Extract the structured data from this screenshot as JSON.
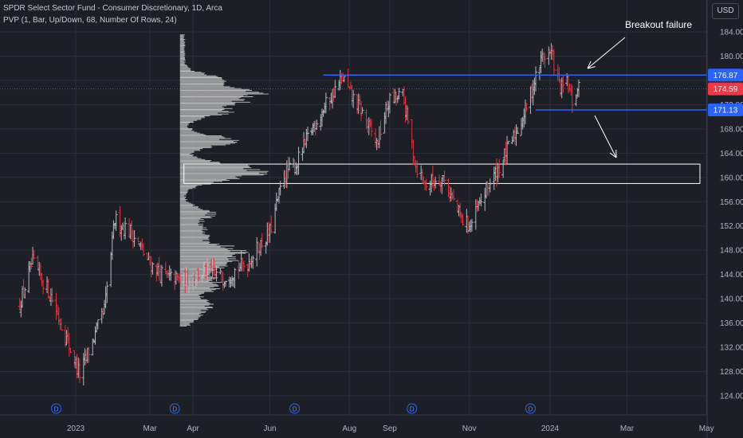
{
  "legend": {
    "title": "SPDR Select Sector Fund - Consumer Discretionary, 1D, Arca",
    "indicator": "PVP (1, Bar, Up/Down, 68, Number Of Rows, 24)"
  },
  "currency_button": "USD",
  "annotation": {
    "text": "Breakout failure"
  },
  "colors": {
    "background": "#1c1f26",
    "up_bar": "#b7b9c0",
    "down_bar": "#e0343f",
    "level_line": "#2962ff",
    "current_price": "#f23645",
    "volume_profile": "#d9d9d9"
  },
  "chart_data": {
    "type": "bar",
    "title": "SPDR Select Sector Fund - Consumer Discretionary, 1D, Arca",
    "ylim": [
      121,
      187
    ],
    "y_ticks": [
      184,
      180,
      176,
      172,
      168,
      164,
      160,
      156,
      152,
      148,
      144,
      140,
      136,
      132,
      128,
      124
    ],
    "y_tick_labels": [
      "184.00",
      "180.00",
      "",
      "172.00",
      "168.00",
      "164.00",
      "160.00",
      "156.00",
      "152.00",
      "148.00",
      "144.00",
      "140.00",
      "136.00",
      "132.00",
      "128.00",
      "124.00"
    ],
    "x_ticks": [
      "2023",
      "Mar",
      "Apr",
      "Jun",
      "Aug",
      "Sep",
      "Nov",
      "2024",
      "Mar",
      "May"
    ],
    "x_tick_dates": [
      "2023-01-03",
      "2023-03-01",
      "2023-04-03",
      "2023-06-01",
      "2023-08-01",
      "2023-09-01",
      "2023-11-01",
      "2024-01-02",
      "2024-03-01",
      "2024-05-01"
    ],
    "dividend_markers": {
      "label": "D",
      "dates": [
        "2022-12-19",
        "2023-03-20",
        "2023-06-20",
        "2023-09-18",
        "2023-12-18"
      ]
    },
    "price_labels": [
      {
        "value": 176.87,
        "text": "176.87",
        "kind": "level"
      },
      {
        "value": 174.59,
        "text": "174.59",
        "kind": "current"
      },
      {
        "value": 171.13,
        "text": "171.13",
        "kind": "level"
      }
    ],
    "levels": [
      {
        "value": 176.87,
        "from": "2023-07-12",
        "to": "2024-05-10"
      },
      {
        "value": 171.13,
        "from": "2023-12-22",
        "to": "2024-05-10"
      }
    ],
    "zone": {
      "from_date": "2023-03-27",
      "to_date": "2024-04-26",
      "low": 159.0,
      "high": 162.2
    },
    "volume_profile": {
      "date": "2023-03-24",
      "price_min": 135.5,
      "price_max": 183.6,
      "peaks": [
        [
          176,
          0.45
        ],
        [
          173.5,
          0.95
        ],
        [
          171,
          0.55
        ],
        [
          166,
          0.6
        ],
        [
          161.5,
          0.75
        ],
        [
          160,
          0.5
        ],
        [
          154,
          0.35
        ],
        [
          151,
          0.3
        ],
        [
          148,
          0.65
        ],
        [
          146,
          0.45
        ],
        [
          144,
          0.25
        ],
        [
          142,
          0.4
        ],
        [
          139,
          0.3
        ],
        [
          137,
          0.15
        ]
      ]
    },
    "price_path": [
      [
        "2022-11-20",
        138.5
      ],
      [
        "2022-12-01",
        146.0
      ],
      [
        "2022-12-15",
        140.5
      ],
      [
        "2023-01-06",
        127.5
      ],
      [
        "2023-01-25",
        138.0
      ],
      [
        "2023-02-02",
        153.0
      ],
      [
        "2023-02-15",
        151.0
      ],
      [
        "2023-02-28",
        146.0
      ],
      [
        "2023-03-13",
        143.5
      ],
      [
        "2023-03-27",
        143.0
      ],
      [
        "2023-04-12",
        144.5
      ],
      [
        "2023-04-26",
        143.5
      ],
      [
        "2023-05-15",
        146.0
      ],
      [
        "2023-06-01",
        151.0
      ],
      [
        "2023-06-12",
        160.5
      ],
      [
        "2023-06-21",
        162.0
      ],
      [
        "2023-07-03",
        168.0
      ],
      [
        "2023-07-14",
        172.0
      ],
      [
        "2023-07-27",
        176.5
      ],
      [
        "2023-08-01",
        174.0
      ],
      [
        "2023-08-10",
        171.0
      ],
      [
        "2023-08-22",
        165.5
      ],
      [
        "2023-08-31",
        172.5
      ],
      [
        "2023-09-11",
        173.5
      ],
      [
        "2023-09-21",
        162.0
      ],
      [
        "2023-09-28",
        159.0
      ],
      [
        "2023-10-12",
        160.0
      ],
      [
        "2023-10-26",
        153.0
      ],
      [
        "2023-11-02",
        152.0
      ],
      [
        "2023-11-14",
        158.0
      ],
      [
        "2023-11-22",
        161.0
      ],
      [
        "2023-12-05",
        166.5
      ],
      [
        "2023-12-14",
        171.0
      ],
      [
        "2023-12-27",
        180.0
      ],
      [
        "2024-01-03",
        180.5
      ],
      [
        "2024-01-10",
        174.5
      ],
      [
        "2024-01-15",
        175.5
      ],
      [
        "2024-01-19",
        172.5
      ],
      [
        "2024-01-24",
        174.59
      ]
    ]
  }
}
